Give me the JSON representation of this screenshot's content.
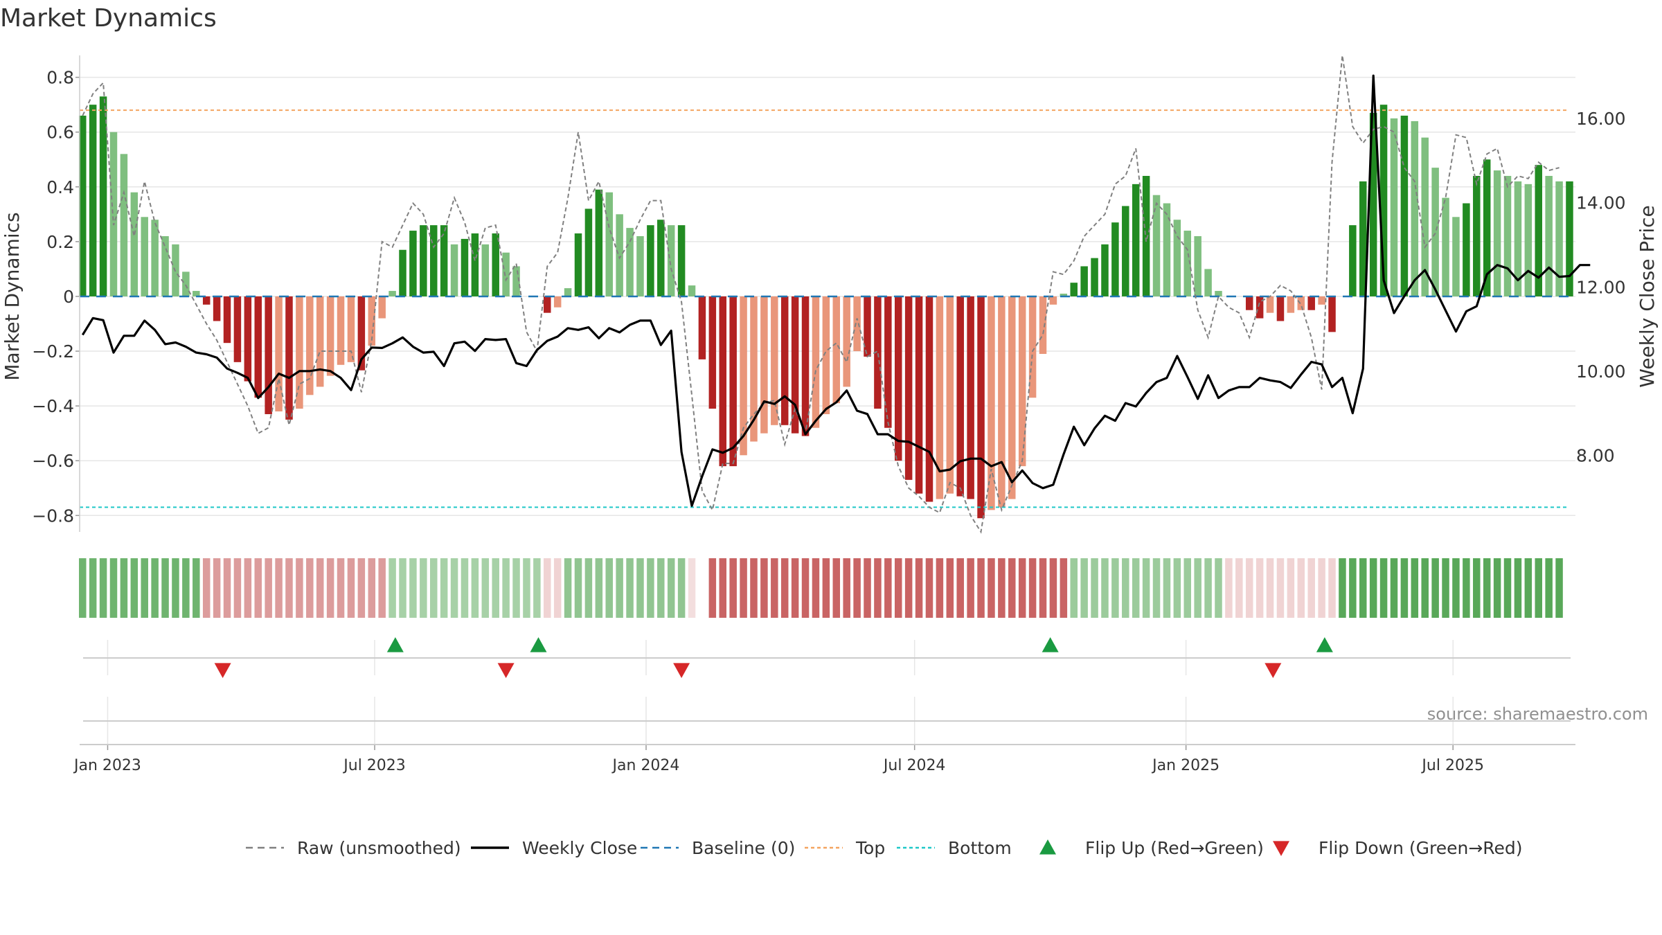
{
  "title": "Market Dynamics",
  "source_note": "source: sharemaestro.com",
  "colors": {
    "strong_green": "#228B22",
    "light_green": "#7FBF7F",
    "strong_red": "#B22222",
    "light_red": "#E9967A",
    "top_line": "#F4A460",
    "bottom_line": "#1EC8C8",
    "baseline": "#1F77B4",
    "raw_line": "#808080",
    "close_line": "#000000",
    "flip_up": "#1A9A41",
    "flip_down": "#D62728",
    "grid": "#E6E6E6"
  },
  "chart_data": {
    "type": "bar",
    "title": "Market Dynamics",
    "ylabel": "Market Dynamics",
    "y2label": "Weekly Close Price",
    "ylim": [
      -0.86,
      0.88
    ],
    "y2lim": [
      6.18,
      17.5
    ],
    "yticks": [
      0.8,
      0.6,
      0.4,
      0.2,
      0,
      -0.2,
      -0.4,
      -0.6,
      -0.8
    ],
    "ytick_labels": [
      "0.8",
      "0.6",
      "0.4",
      "0.2",
      "0",
      "−0.2",
      "−0.4",
      "−0.6",
      "−0.8"
    ],
    "y2ticks": [
      8,
      10,
      12,
      14,
      16
    ],
    "y2tick_labels": [
      "8.00",
      "10.00",
      "12.00",
      "14.00",
      "16.00"
    ],
    "xrange": [
      "2022-12-13",
      "2025-09-22"
    ],
    "xticks": [
      "2023-01-01",
      "2023-07-01",
      "2024-01-01",
      "2024-07-01",
      "2025-01-01",
      "2025-07-01"
    ],
    "xtick_labels": [
      "Jan 2023",
      "Jul 2023",
      "Jan 2024",
      "Jul 2024",
      "Jan 2025",
      "Jul 2025"
    ],
    "start_date": "2022-12-15",
    "week_step_days": 7,
    "top_level": 0.68,
    "bottom_level": -0.77,
    "baseline_level": 0,
    "grid": true,
    "legend_position": "bottom",
    "legend": [
      {
        "key": "raw",
        "label": "Raw (unsmoothed)",
        "style": "dashed",
        "color": "#808080"
      },
      {
        "key": "close",
        "label": "Weekly Close",
        "style": "solid",
        "color": "#000000"
      },
      {
        "key": "baseline",
        "label": "Baseline (0)",
        "style": "dashed",
        "color": "#1F77B4"
      },
      {
        "key": "top",
        "label": "Top",
        "style": "dotted",
        "color": "#F4A460"
      },
      {
        "key": "bottom",
        "label": "Bottom",
        "style": "dotted",
        "color": "#1EC8C8"
      },
      {
        "key": "flip_up",
        "label": "Flip Up (Red→Green)",
        "style": "triangle-up",
        "color": "#1A9A41"
      },
      {
        "key": "flip_down",
        "label": "Flip Down (Green→Red)",
        "style": "triangle-down",
        "color": "#D62728"
      }
    ],
    "series": [
      {
        "name": "Market Dynamics",
        "kind": "bar",
        "values": [
          0.66,
          0.7,
          0.73,
          0.6,
          0.52,
          0.38,
          0.29,
          0.28,
          0.22,
          0.19,
          0.09,
          0.02,
          -0.03,
          -0.09,
          -0.17,
          -0.24,
          -0.31,
          -0.37,
          -0.43,
          -0.42,
          -0.45,
          -0.41,
          -0.36,
          -0.33,
          -0.29,
          -0.25,
          -0.24,
          -0.27,
          -0.18,
          -0.08,
          0.02,
          0.17,
          0.24,
          0.26,
          0.26,
          0.26,
          0.19,
          0.21,
          0.23,
          0.19,
          0.23,
          0.16,
          0.11,
          0,
          0,
          -0.06,
          -0.04,
          0.03,
          0.23,
          0.32,
          0.39,
          0.38,
          0.3,
          0.25,
          0.22,
          0.26,
          0.28,
          0.26,
          0.26,
          0.04,
          -0.23,
          -0.41,
          -0.62,
          -0.62,
          -0.58,
          -0.53,
          -0.5,
          -0.47,
          -0.47,
          -0.5,
          -0.51,
          -0.48,
          -0.43,
          -0.39,
          -0.33,
          -0.2,
          -0.22,
          -0.41,
          -0.48,
          -0.6,
          -0.67,
          -0.72,
          -0.75,
          -0.74,
          -0.72,
          -0.73,
          -0.74,
          -0.81,
          -0.78,
          -0.77,
          -0.74,
          -0.62,
          -0.37,
          -0.21,
          -0.03,
          0.01,
          0.05,
          0.11,
          0.14,
          0.19,
          0.27,
          0.33,
          0.41,
          0.44,
          0.37,
          0.34,
          0.28,
          0.24,
          0.22,
          0.1,
          0.02,
          0,
          0,
          -0.05,
          -0.08,
          -0.06,
          -0.09,
          -0.06,
          -0.05,
          -0.05,
          -0.03,
          -0.13,
          0,
          0.26,
          0.42,
          0.67,
          0.7,
          0.65,
          0.66,
          0.64,
          0.58,
          0.47,
          0.36,
          0.29,
          0.34,
          0.44,
          0.5,
          0.46,
          0.44,
          0.42,
          0.41,
          0.48,
          0.44,
          0.42,
          0.42
        ]
      },
      {
        "name": "Raw (unsmoothed)",
        "kind": "line",
        "values": [
          0.66,
          0.74,
          0.78,
          0.26,
          0.38,
          0.22,
          0.42,
          0.27,
          0.18,
          0.09,
          0.04,
          -0.03,
          -0.1,
          -0.16,
          -0.24,
          -0.32,
          -0.4,
          -0.5,
          -0.48,
          -0.3,
          -0.47,
          -0.32,
          -0.3,
          -0.2,
          -0.2,
          -0.2,
          -0.2,
          -0.35,
          -0.16,
          0.2,
          0.18,
          0.26,
          0.34,
          0.3,
          0.18,
          0.23,
          0.36,
          0.27,
          0.13,
          0.25,
          0.26,
          0.06,
          0.12,
          -0.13,
          -0.2,
          0.11,
          0.16,
          0.36,
          0.6,
          0.35,
          0.42,
          0.25,
          0.14,
          0.2,
          0.28,
          0.35,
          0.35,
          0.1,
          -0.02,
          -0.36,
          -0.71,
          -0.78,
          -0.61,
          -0.61,
          -0.48,
          -0.43,
          -0.39,
          -0.38,
          -0.54,
          -0.41,
          -0.5,
          -0.27,
          -0.2,
          -0.17,
          -0.24,
          -0.08,
          -0.22,
          -0.2,
          -0.46,
          -0.62,
          -0.7,
          -0.73,
          -0.77,
          -0.79,
          -0.68,
          -0.7,
          -0.8,
          -0.86,
          -0.63,
          -0.78,
          -0.69,
          -0.6,
          -0.2,
          -0.14,
          0.09,
          0.08,
          0.13,
          0.22,
          0.26,
          0.3,
          0.41,
          0.44,
          0.54,
          0.2,
          0.34,
          0.3,
          0.22,
          0.17,
          -0.05,
          -0.15,
          0,
          -0.04,
          -0.06,
          -0.15,
          -0.02,
          0,
          0.04,
          0.02,
          -0.03,
          -0.15,
          -0.34,
          0.49,
          0.88,
          0.62,
          0.56,
          0.61,
          0.62,
          0.6,
          0.47,
          0.42,
          0.18,
          0.23,
          0.36,
          0.59,
          0.58,
          0.41,
          0.52,
          0.54,
          0.4,
          0.44,
          0.43,
          0.49,
          0.46,
          0.47
        ]
      },
      {
        "name": "Weekly Close",
        "kind": "line",
        "axis": "right",
        "values": [
          10.86,
          11.26,
          11.21,
          10.44,
          10.84,
          10.84,
          11.2,
          10.98,
          10.64,
          10.68,
          10.58,
          10.44,
          10.4,
          10.32,
          10.06,
          9.96,
          9.84,
          9.36,
          9.62,
          9.94,
          9.84,
          10.0,
          10.0,
          10.04,
          10.0,
          9.84,
          9.55,
          10.28,
          10.56,
          10.55,
          10.66,
          10.8,
          10.58,
          10.44,
          10.46,
          10.12,
          10.66,
          10.7,
          10.48,
          10.76,
          10.74,
          10.76,
          10.19,
          10.12,
          10.5,
          10.72,
          10.82,
          11.02,
          10.98,
          11.04,
          10.78,
          11.02,
          10.92,
          11.1,
          11.2,
          11.2,
          10.62,
          10.96,
          8.08,
          6.8,
          7.5,
          8.14,
          8.06,
          8.18,
          8.46,
          8.84,
          9.28,
          9.22,
          9.4,
          9.2,
          8.5,
          8.82,
          9.1,
          9.26,
          9.54,
          9.06,
          8.98,
          8.5,
          8.5,
          8.34,
          8.32,
          8.2,
          8.08,
          7.62,
          7.66,
          7.86,
          7.92,
          7.92,
          7.74,
          7.84,
          7.36,
          7.64,
          7.34,
          7.22,
          7.3,
          8.02,
          8.68,
          8.24,
          8.64,
          8.94,
          8.82,
          9.24,
          9.16,
          9.48,
          9.74,
          9.84,
          10.36,
          9.86,
          9.34,
          9.9,
          9.36,
          9.54,
          9.62,
          9.62,
          9.84,
          9.78,
          9.74,
          9.6,
          9.92,
          10.22,
          10.16,
          9.62,
          9.84,
          9.0,
          10.06,
          17.02,
          12.16,
          11.38,
          11.78,
          12.16,
          12.4,
          11.94,
          11.44,
          10.94,
          11.42,
          11.54,
          12.3,
          12.52,
          12.44,
          12.16,
          12.38,
          12.22,
          12.46,
          12.24,
          12.26,
          12.52,
          12.52
        ]
      }
    ],
    "regime_strip": [
      {
        "from_week": 0,
        "to_week": 11,
        "color": "green",
        "intensity": 0.65
      },
      {
        "from_week": 12,
        "to_week": 29,
        "color": "red",
        "intensity": 0.45
      },
      {
        "from_week": 30,
        "to_week": 44,
        "color": "green",
        "intensity": 0.4
      },
      {
        "from_week": 45,
        "to_week": 46,
        "color": "red",
        "intensity": 0.2
      },
      {
        "from_week": 47,
        "to_week": 58,
        "color": "green",
        "intensity": 0.5
      },
      {
        "from_week": 59,
        "to_week": 59,
        "color": "red",
        "intensity": 0.15
      },
      {
        "from_week": 61,
        "to_week": 95,
        "color": "red",
        "intensity": 0.7
      },
      {
        "from_week": 96,
        "to_week": 110,
        "color": "green",
        "intensity": 0.45
      },
      {
        "from_week": 111,
        "to_week": 121,
        "color": "red",
        "intensity": 0.2
      },
      {
        "from_week": 122,
        "to_week": 143,
        "color": "green",
        "intensity": 0.75
      }
    ],
    "flip_up": [
      "2023-07-15",
      "2023-10-20",
      "2024-10-01",
      "2025-04-05"
    ],
    "flip_down": [
      "2023-03-20",
      "2023-09-28",
      "2024-01-25",
      "2025-03-01"
    ]
  }
}
